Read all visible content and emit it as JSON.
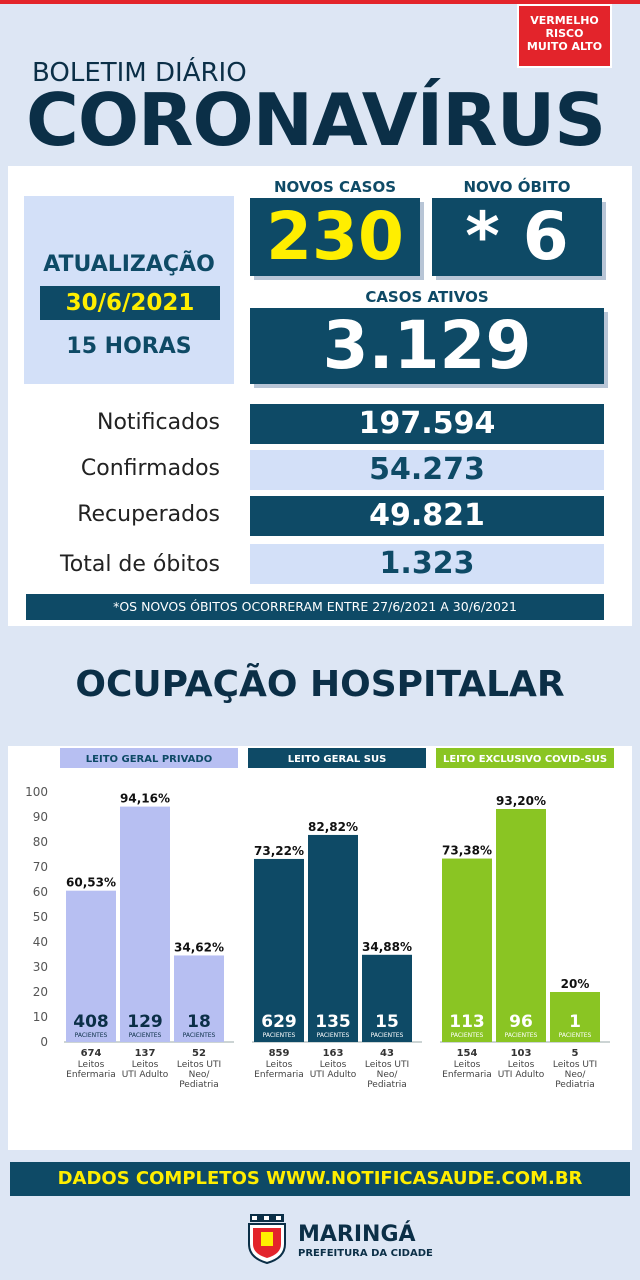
{
  "header": {
    "risk_lines": [
      "VERMELHO",
      "RISCO",
      "MUITO ALTO"
    ],
    "subtitle": "BOLETIM DIÁRIO",
    "title": "CORONAVÍRUS"
  },
  "update": {
    "label": "ATUALIZAÇÃO",
    "date": "30/6/2021",
    "hour": "15 HORAS"
  },
  "highlights": {
    "new_cases_label": "NOVOS CASOS",
    "new_cases": "230",
    "new_death_label": "NOVO ÓBITO",
    "new_death": "* 6",
    "active_label": "CASOS ATIVOS",
    "active": "3.129"
  },
  "stats": [
    {
      "label": "Notificados",
      "value": "197.594"
    },
    {
      "label": "Confirmados",
      "value": "54.273"
    },
    {
      "label": "Recuperados",
      "value": "49.821"
    },
    {
      "label": "Total de óbitos",
      "value": "1.323"
    }
  ],
  "note": "*OS NOVOS ÓBITOS OCORRERAM ENTRE 27/6/2021 A 30/6/2021",
  "hospital_title": "OCUPAÇÃO HOSPITALAR",
  "colors": {
    "dark": "#0e4a66",
    "light": "#d3e0f8",
    "private": "#b7bff2",
    "sus": "#0e4a66",
    "covid": "#8ac523",
    "yellow": "#ffee00",
    "red": "#e3242b"
  },
  "chart_data": {
    "type": "bar",
    "ylim": [
      0,
      100
    ],
    "yticks": [
      "100",
      "90",
      "80",
      "70",
      "60",
      "50",
      "40",
      "30",
      "20",
      "10",
      "0"
    ],
    "patients_word": "PACIENTES",
    "groups": [
      {
        "title": "LEITO GERAL PRIVADO",
        "color": "#b7bff2",
        "bars": [
          {
            "percent": 60.53,
            "percent_label": "60,53%",
            "patients": "408",
            "beds": "674",
            "category": [
              "Leitos",
              "Enfermaria"
            ]
          },
          {
            "percent": 94.16,
            "percent_label": "94,16%",
            "patients": "129",
            "beds": "137",
            "category": [
              "Leitos",
              "UTI Adulto"
            ]
          },
          {
            "percent": 34.62,
            "percent_label": "34,62%",
            "patients": "18",
            "beds": "52",
            "category": [
              "Leitos UTI",
              "Neo/",
              "Pediatria"
            ]
          }
        ]
      },
      {
        "title": "LEITO GERAL SUS",
        "color": "#0e4a66",
        "bars": [
          {
            "percent": 73.22,
            "percent_label": "73,22%",
            "patients": "629",
            "beds": "859",
            "category": [
              "Leitos",
              "Enfermaria"
            ]
          },
          {
            "percent": 82.82,
            "percent_label": "82,82%",
            "patients": "135",
            "beds": "163",
            "category": [
              "Leitos",
              "UTI Adulto"
            ]
          },
          {
            "percent": 34.88,
            "percent_label": "34,88%",
            "patients": "15",
            "beds": "43",
            "category": [
              "Leitos UTI",
              "Neo/",
              "Pediatria"
            ]
          }
        ]
      },
      {
        "title": "LEITO EXCLUSIVO COVID-SUS",
        "color": "#8ac523",
        "bars": [
          {
            "percent": 73.38,
            "percent_label": "73,38%",
            "patients": "113",
            "beds": "154",
            "category": [
              "Leitos",
              "Enfermaria"
            ]
          },
          {
            "percent": 93.2,
            "percent_label": "93,20%",
            "patients": "96",
            "beds": "103",
            "category": [
              "Leitos",
              "UTI Adulto"
            ]
          },
          {
            "percent": 20,
            "percent_label": "20%",
            "patients": "1",
            "beds": "5",
            "category": [
              "Leitos UTI",
              "Neo/",
              "Pediatria"
            ]
          }
        ]
      }
    ]
  },
  "footer": {
    "text": "DADOS COMPLETOS  WWW.NOTIFICASAUDE.COM.BR",
    "city": "MARINGÁ",
    "city_sub": "PREFEITURA DA CIDADE"
  }
}
